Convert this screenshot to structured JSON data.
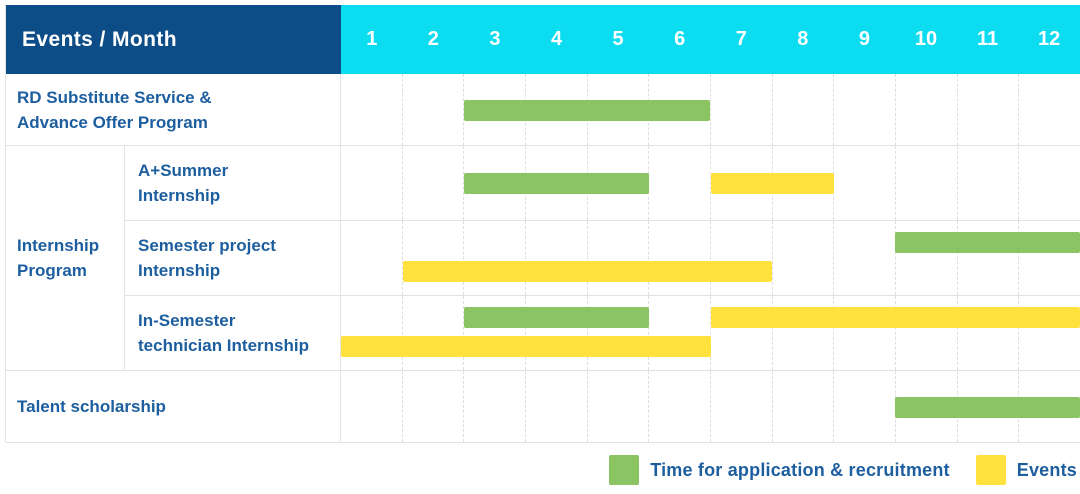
{
  "header": {
    "title": "Events / Month"
  },
  "colors": {
    "header_bg": "#0d4d87",
    "months_bg": "#0cdcf0",
    "header_text": "#ffffff",
    "label_text": "#1d5e9f",
    "recruitment": "#8bc462",
    "events": "#ffe23e",
    "row_border": "#e3e3e3",
    "grid_dash": "#dedede"
  },
  "chart_data": {
    "type": "gantt",
    "title": "Events / Month",
    "x_axis": {
      "label": "Month",
      "ticks": [
        "1",
        "2",
        "3",
        "4",
        "5",
        "6",
        "7",
        "8",
        "9",
        "10",
        "11",
        "12"
      ],
      "range": [
        1,
        12
      ]
    },
    "legend": [
      {
        "key": "recruitment",
        "label": "Time for application & recruitment",
        "color": "#8bc462"
      },
      {
        "key": "events",
        "label": "Events",
        "color": "#ffe23e"
      }
    ],
    "sections": [
      {
        "kind": "row",
        "row": {
          "id": "rd-substitute-advance-offer",
          "label_lines": [
            "RD Substitute Service &",
            "Advance Offer Program"
          ],
          "height": 72,
          "bars": [
            {
              "series": "recruitment",
              "start_month": 3,
              "end_month": 6,
              "lane": "middle"
            }
          ]
        }
      },
      {
        "kind": "group",
        "id": "internship-program",
        "label_lines": [
          "Internship",
          "Program"
        ],
        "rows": [
          {
            "id": "a-plus-summer-internship",
            "label_lines": [
              "A+Summer",
              "Internship"
            ],
            "height": 75,
            "bars": [
              {
                "series": "recruitment",
                "start_month": 3,
                "end_month": 5,
                "lane": "middle"
              },
              {
                "series": "events",
                "start_month": 7,
                "end_month": 8,
                "lane": "middle"
              }
            ]
          },
          {
            "id": "semester-project-internship",
            "label_lines": [
              "Semester project",
              "Internship"
            ],
            "height": 75,
            "bars": [
              {
                "series": "recruitment",
                "start_month": 10,
                "end_month": 12,
                "lane": "upper"
              },
              {
                "series": "events",
                "start_month": 2,
                "end_month": 7,
                "lane": "lower"
              }
            ]
          },
          {
            "id": "in-semester-technician-internship",
            "label_lines": [
              "In-Semester",
              "technician Internship"
            ],
            "height": 74,
            "bars": [
              {
                "series": "recruitment",
                "start_month": 3,
                "end_month": 5,
                "lane": "upper"
              },
              {
                "series": "events",
                "start_month": 7,
                "end_month": 12,
                "lane": "upper"
              },
              {
                "series": "events",
                "start_month": 1,
                "end_month": 6,
                "lane": "lower"
              }
            ]
          }
        ]
      },
      {
        "kind": "row",
        "row": {
          "id": "talent-scholarship",
          "label_lines": [
            "Talent scholarship"
          ],
          "height": 72,
          "bars": [
            {
              "series": "recruitment",
              "start_month": 10,
              "end_month": 12,
              "lane": "middle"
            }
          ]
        }
      }
    ]
  }
}
